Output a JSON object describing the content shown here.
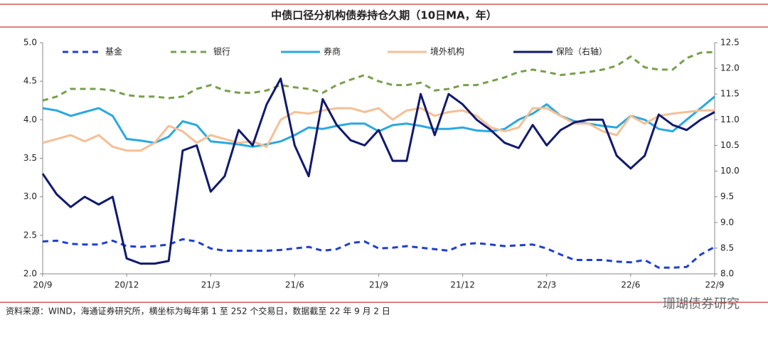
{
  "chart_data": {
    "type": "line",
    "title": "中债口径分机构债券持仓久期（10日MA，年）",
    "source": "资料来源：WIND，海通证券研究所，横坐标为每年第 1 至 252 个交易日，数据截至 22 年 9 月 2 日",
    "watermark": "珊瑚债券研究",
    "categories": [
      "20/9",
      null,
      null,
      null,
      null,
      null,
      "20/12",
      null,
      null,
      null,
      null,
      null,
      "21/3",
      null,
      null,
      null,
      null,
      null,
      "21/6",
      null,
      null,
      null,
      null,
      null,
      "21/9",
      null,
      null,
      null,
      null,
      null,
      "21/12",
      null,
      null,
      null,
      null,
      null,
      "22/3",
      null,
      null,
      null,
      null,
      null,
      "22/6",
      null,
      null,
      null,
      null,
      null,
      "22/9"
    ],
    "ylim": [
      2.0,
      5.0
    ],
    "yticks": [
      {
        "value": 2,
        "label": "2.0"
      },
      {
        "value": 2.5,
        "label": "2.5"
      },
      {
        "value": 3,
        "label": "3.0"
      },
      {
        "value": 3.5,
        "label": "3.5"
      },
      {
        "value": 4,
        "label": "4.0"
      },
      {
        "value": 4.5,
        "label": "4.5"
      },
      {
        "value": 5,
        "label": "5.0"
      }
    ],
    "y2lim": [
      8.0,
      12.5
    ],
    "y2ticks": [
      {
        "value": 8,
        "label": "8.0"
      },
      {
        "value": 8.5,
        "label": "8.5"
      },
      {
        "value": 9,
        "label": "9.0"
      },
      {
        "value": 9.5,
        "label": "9.5"
      },
      {
        "value": 10,
        "label": "10.0"
      },
      {
        "value": 10.5,
        "label": "10.5"
      },
      {
        "value": 11,
        "label": "11.0"
      },
      {
        "value": 11.5,
        "label": "11.5"
      },
      {
        "value": 12,
        "label": "12.0"
      },
      {
        "value": 12.5,
        "label": "12.5"
      }
    ],
    "legend": "top",
    "series": [
      {
        "name": "基金",
        "color": "#1f3fd1",
        "dashed": true,
        "values": [
          2.42,
          2.43,
          2.39,
          2.38,
          2.38,
          2.43,
          2.36,
          2.35,
          2.36,
          2.38,
          2.45,
          2.42,
          2.33,
          2.3,
          2.3,
          2.3,
          2.3,
          2.31,
          2.33,
          2.35,
          2.3,
          2.32,
          2.4,
          2.42,
          2.33,
          2.34,
          2.36,
          2.34,
          2.32,
          2.3,
          2.38,
          2.4,
          2.38,
          2.36,
          2.37,
          2.38,
          2.33,
          2.25,
          2.18,
          2.18,
          2.18,
          2.16,
          2.15,
          2.18,
          2.08,
          2.08,
          2.09,
          2.25,
          2.35
        ]
      },
      {
        "name": "银行",
        "color": "#77a04a",
        "dashed": true,
        "values": [
          4.25,
          4.3,
          4.4,
          4.4,
          4.4,
          4.38,
          4.32,
          4.3,
          4.3,
          4.28,
          4.3,
          4.4,
          4.45,
          4.38,
          4.35,
          4.35,
          4.38,
          4.45,
          4.42,
          4.4,
          4.35,
          4.45,
          4.52,
          4.58,
          4.5,
          4.45,
          4.45,
          4.48,
          4.38,
          4.4,
          4.45,
          4.45,
          4.5,
          4.55,
          4.62,
          4.65,
          4.62,
          4.58,
          4.6,
          4.62,
          4.65,
          4.7,
          4.82,
          4.68,
          4.65,
          4.65,
          4.8,
          4.87,
          4.88
        ]
      },
      {
        "name": "券商",
        "color": "#29a8e0",
        "dashed": false,
        "values": [
          4.15,
          4.12,
          4.05,
          4.1,
          4.15,
          4.05,
          3.75,
          3.73,
          3.7,
          3.78,
          3.98,
          3.93,
          3.72,
          3.7,
          3.68,
          3.65,
          3.68,
          3.72,
          3.8,
          3.9,
          3.88,
          3.92,
          3.95,
          3.95,
          3.85,
          3.93,
          3.95,
          3.92,
          3.88,
          3.88,
          3.9,
          3.86,
          3.85,
          3.88,
          4.0,
          4.08,
          4.2,
          4.05,
          3.98,
          3.95,
          3.92,
          3.9,
          4.05,
          4.0,
          3.88,
          3.85,
          4.0,
          4.15,
          4.3
        ]
      },
      {
        "name": "境外机构",
        "color": "#f5bf96",
        "dashed": false,
        "values": [
          3.7,
          3.75,
          3.8,
          3.72,
          3.8,
          3.65,
          3.6,
          3.6,
          3.7,
          3.92,
          3.85,
          3.7,
          3.8,
          3.75,
          3.7,
          3.72,
          3.65,
          4.0,
          4.1,
          4.08,
          4.12,
          4.15,
          4.15,
          4.1,
          4.15,
          4.0,
          4.12,
          4.15,
          4.05,
          4.1,
          4.12,
          4.05,
          3.9,
          3.85,
          3.9,
          4.15,
          4.15,
          4.05,
          3.95,
          3.95,
          3.85,
          3.8,
          4.05,
          3.95,
          4.05,
          4.08,
          4.1,
          4.12,
          4.12
        ]
      },
      {
        "name": "保险（右轴）",
        "color": "#111a6e",
        "dashed": false,
        "axis": "y2",
        "values": [
          9.95,
          9.55,
          9.3,
          9.5,
          9.35,
          9.5,
          8.3,
          8.2,
          8.2,
          8.25,
          10.4,
          10.5,
          9.6,
          9.9,
          10.8,
          10.5,
          11.3,
          11.8,
          10.5,
          9.9,
          11.4,
          10.9,
          10.6,
          10.5,
          10.8,
          10.2,
          10.2,
          11.5,
          10.7,
          11.5,
          11.3,
          11.0,
          10.8,
          10.55,
          10.45,
          10.9,
          10.5,
          10.8,
          10.95,
          11.0,
          11.0,
          10.3,
          10.05,
          10.3,
          11.1,
          10.9,
          10.8,
          11.0,
          11.15
        ]
      }
    ]
  }
}
